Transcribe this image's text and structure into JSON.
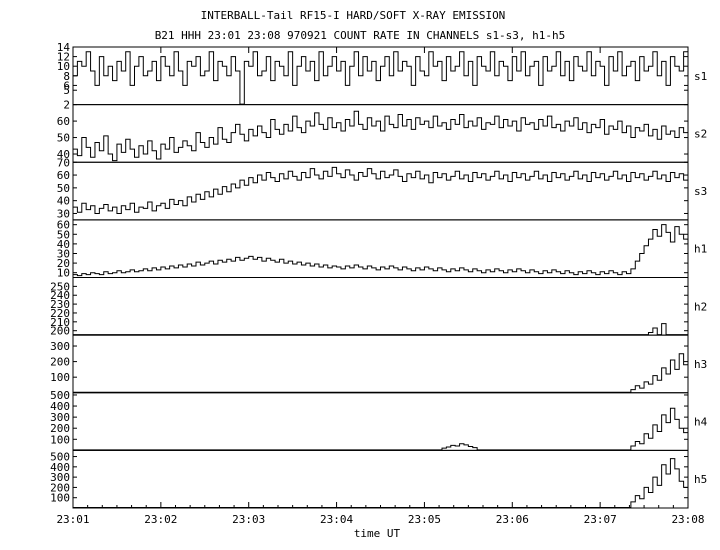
{
  "title": "INTERBALL-Tail RF15-I HARD/SOFT X-RAY EMISSION",
  "subtitle": "B21 HHH 23:01 23:08 970921  COUNT RATE IN CHANNELS s1-s3, h1-h5",
  "chart_data": {
    "type": "line",
    "xlabel": "time UT",
    "x_range": [
      "23:01",
      "23:08"
    ],
    "x_ticks": [
      "23:01",
      "23:02",
      "23:03",
      "23:04",
      "23:05",
      "23:06",
      "23:07",
      "23:08"
    ],
    "panels": [
      {
        "name": "s1",
        "ylim": [
          2,
          14
        ],
        "yticks": [
          2,
          5,
          6,
          8,
          10,
          12,
          14
        ],
        "values": [
          8,
          11,
          10,
          13,
          9,
          6,
          12,
          8,
          10,
          7,
          11,
          9,
          13,
          6,
          10,
          12,
          8,
          9,
          11,
          7,
          12,
          10,
          8,
          13,
          9,
          6,
          11,
          10,
          12,
          8,
          9,
          13,
          7,
          11,
          10,
          8,
          12,
          9,
          2,
          11,
          10,
          13,
          8,
          9,
          12,
          7,
          11,
          10,
          8,
          13,
          6,
          10,
          12,
          9,
          11,
          7,
          13,
          8,
          10,
          12,
          9,
          11,
          6,
          10,
          13,
          8,
          12,
          9,
          11,
          7,
          10,
          12,
          8,
          13,
          9,
          11,
          10,
          6,
          12,
          9,
          8,
          13,
          10,
          11,
          7,
          12,
          9,
          10,
          13,
          8,
          11,
          6,
          12,
          10,
          9,
          13,
          8,
          11,
          10,
          7,
          12,
          9,
          13,
          8,
          10,
          11,
          6,
          12,
          9,
          10,
          13,
          8,
          11,
          7,
          12,
          10,
          9,
          13,
          8,
          11,
          10,
          6,
          12,
          9,
          13,
          8,
          10,
          11,
          7,
          12,
          9,
          10,
          13,
          8,
          11,
          6,
          12,
          10,
          9,
          13
        ]
      },
      {
        "name": "s2",
        "ylim": [
          35,
          70
        ],
        "yticks": [
          40,
          50,
          60
        ],
        "values": [
          43,
          39,
          50,
          44,
          38,
          47,
          42,
          51,
          40,
          36,
          46,
          41,
          49,
          43,
          38,
          45,
          40,
          48,
          42,
          37,
          46,
          43,
          50,
          41,
          44,
          48,
          45,
          42,
          53,
          47,
          44,
          50,
          46,
          56,
          49,
          47,
          53,
          58,
          52,
          48,
          55,
          51,
          57,
          53,
          50,
          61,
          55,
          52,
          58,
          54,
          63,
          56,
          53,
          60,
          57,
          65,
          58,
          55,
          62,
          56,
          59,
          54,
          61,
          57,
          66,
          58,
          55,
          62,
          57,
          60,
          54,
          63,
          58,
          56,
          64,
          57,
          61,
          55,
          62,
          58,
          60,
          56,
          63,
          57,
          59,
          55,
          61,
          58,
          64,
          56,
          60,
          57,
          62,
          55,
          59,
          58,
          63,
          56,
          61,
          57,
          60,
          54,
          62,
          58,
          59,
          55,
          61,
          57,
          63,
          56,
          58,
          54,
          60,
          57,
          62,
          55,
          59,
          53,
          58,
          56,
          61,
          52,
          57,
          55,
          60,
          53,
          57,
          50,
          56,
          54,
          58,
          51,
          55,
          49,
          57,
          52,
          54,
          50,
          56,
          53
        ]
      },
      {
        "name": "s3",
        "ylim": [
          25,
          70
        ],
        "yticks": [
          30,
          40,
          50,
          60,
          70
        ],
        "values": [
          35,
          31,
          38,
          33,
          36,
          30,
          34,
          37,
          32,
          35,
          30,
          36,
          33,
          38,
          31,
          35,
          34,
          39,
          32,
          36,
          38,
          34,
          41,
          37,
          40,
          36,
          43,
          39,
          45,
          41,
          47,
          43,
          49,
          45,
          51,
          47,
          53,
          50,
          56,
          52,
          58,
          54,
          60,
          56,
          62,
          58,
          55,
          61,
          57,
          63,
          59,
          56,
          62,
          58,
          65,
          60,
          57,
          63,
          59,
          66,
          61,
          58,
          64,
          60,
          56,
          62,
          59,
          65,
          61,
          57,
          63,
          58,
          60,
          64,
          59,
          55,
          61,
          58,
          63,
          57,
          60,
          54,
          62,
          58,
          61,
          56,
          59,
          63,
          57,
          60,
          55,
          62,
          58,
          61,
          56,
          59,
          63,
          57,
          60,
          55,
          62,
          58,
          61,
          56,
          59,
          63,
          57,
          60,
          55,
          62,
          58,
          61,
          56,
          59,
          63,
          57,
          60,
          55,
          62,
          58,
          61,
          56,
          59,
          63,
          57,
          60,
          55,
          62,
          58,
          61,
          56,
          59,
          63,
          57,
          60,
          55,
          62,
          58,
          61,
          56
        ]
      },
      {
        "name": "h1",
        "ylim": [
          5,
          65
        ],
        "yticks": [
          10,
          20,
          30,
          40,
          50,
          60
        ],
        "values": [
          8,
          7,
          9,
          8,
          10,
          9,
          8,
          11,
          9,
          10,
          12,
          10,
          11,
          13,
          11,
          12,
          14,
          12,
          15,
          13,
          16,
          14,
          17,
          15,
          18,
          16,
          19,
          17,
          21,
          18,
          20,
          22,
          19,
          23,
          21,
          24,
          22,
          26,
          23,
          25,
          27,
          24,
          26,
          22,
          25,
          23,
          21,
          24,
          20,
          22,
          19,
          21,
          18,
          20,
          17,
          19,
          16,
          18,
          15,
          17,
          16,
          14,
          17,
          15,
          18,
          16,
          14,
          17,
          15,
          13,
          16,
          14,
          17,
          15,
          13,
          16,
          14,
          12,
          15,
          13,
          16,
          14,
          12,
          15,
          13,
          11,
          14,
          12,
          15,
          13,
          11,
          14,
          12,
          10,
          13,
          11,
          14,
          12,
          10,
          13,
          11,
          14,
          12,
          10,
          13,
          11,
          9,
          12,
          10,
          13,
          11,
          9,
          12,
          10,
          8,
          11,
          9,
          12,
          10,
          8,
          11,
          9,
          12,
          10,
          8,
          11,
          9,
          14,
          22,
          30,
          38,
          45,
          55,
          48,
          60,
          52,
          42,
          58,
          50,
          45
        ]
      },
      {
        "name": "h2",
        "ylim": [
          195,
          260
        ],
        "yticks": [
          200,
          210,
          220,
          230,
          240,
          250
        ],
        "values": [
          195,
          195,
          195,
          195,
          195,
          195,
          195,
          195,
          195,
          195,
          195,
          195,
          195,
          195,
          195,
          195,
          195,
          195,
          195,
          195,
          195,
          195,
          195,
          195,
          195,
          195,
          195,
          195,
          195,
          195,
          195,
          195,
          195,
          195,
          195,
          195,
          195,
          195,
          195,
          195,
          195,
          195,
          195,
          195,
          195,
          195,
          195,
          195,
          195,
          195,
          195,
          195,
          195,
          195,
          195,
          195,
          195,
          195,
          195,
          195,
          195,
          195,
          195,
          195,
          195,
          195,
          195,
          195,
          195,
          195,
          195,
          195,
          195,
          195,
          195,
          195,
          195,
          195,
          195,
          195,
          195,
          195,
          195,
          195,
          195,
          195,
          195,
          195,
          195,
          195,
          195,
          195,
          195,
          195,
          195,
          195,
          195,
          195,
          195,
          195,
          195,
          195,
          195,
          195,
          195,
          195,
          195,
          195,
          195,
          195,
          195,
          195,
          195,
          195,
          195,
          195,
          195,
          195,
          195,
          195,
          195,
          195,
          195,
          195,
          195,
          195,
          195,
          195,
          195,
          195,
          195,
          198,
          203,
          195,
          208,
          195,
          195,
          195,
          195,
          195
        ]
      },
      {
        "name": "h3",
        "ylim": [
          0,
          370
        ],
        "yticks": [
          100,
          200,
          300
        ],
        "values": [
          0,
          0,
          0,
          0,
          0,
          0,
          0,
          0,
          0,
          0,
          0,
          0,
          0,
          0,
          0,
          0,
          0,
          0,
          0,
          0,
          0,
          0,
          0,
          0,
          0,
          0,
          0,
          0,
          0,
          0,
          0,
          0,
          0,
          0,
          0,
          0,
          0,
          0,
          0,
          0,
          0,
          0,
          0,
          0,
          0,
          0,
          0,
          0,
          0,
          0,
          0,
          0,
          0,
          0,
          0,
          0,
          0,
          0,
          0,
          0,
          0,
          0,
          0,
          0,
          0,
          0,
          0,
          0,
          0,
          0,
          0,
          0,
          0,
          0,
          0,
          0,
          0,
          0,
          0,
          0,
          0,
          0,
          0,
          0,
          0,
          0,
          0,
          0,
          0,
          0,
          0,
          0,
          0,
          0,
          0,
          0,
          0,
          0,
          0,
          0,
          0,
          0,
          0,
          0,
          0,
          0,
          0,
          0,
          0,
          0,
          0,
          0,
          0,
          0,
          0,
          0,
          0,
          0,
          0,
          0,
          0,
          0,
          0,
          0,
          0,
          0,
          0,
          20,
          45,
          30,
          70,
          55,
          110,
          80,
          160,
          120,
          210,
          150,
          250,
          180
        ]
      },
      {
        "name": "h4",
        "ylim": [
          0,
          520
        ],
        "yticks": [
          100,
          200,
          300,
          400,
          500
        ],
        "values": [
          0,
          0,
          0,
          0,
          0,
          0,
          0,
          0,
          0,
          0,
          0,
          0,
          0,
          0,
          0,
          0,
          0,
          0,
          0,
          0,
          0,
          0,
          0,
          0,
          0,
          0,
          0,
          0,
          0,
          0,
          0,
          0,
          0,
          0,
          0,
          0,
          0,
          0,
          0,
          0,
          0,
          0,
          0,
          0,
          0,
          0,
          0,
          0,
          0,
          0,
          0,
          0,
          0,
          0,
          0,
          0,
          0,
          0,
          0,
          0,
          0,
          0,
          0,
          0,
          0,
          0,
          0,
          0,
          0,
          0,
          0,
          0,
          0,
          0,
          0,
          0,
          0,
          0,
          0,
          0,
          0,
          0,
          0,
          0,
          20,
          30,
          45,
          40,
          60,
          50,
          35,
          25,
          0,
          0,
          0,
          0,
          0,
          0,
          0,
          0,
          0,
          0,
          0,
          0,
          0,
          0,
          0,
          0,
          0,
          0,
          0,
          0,
          0,
          0,
          0,
          0,
          0,
          0,
          0,
          0,
          0,
          0,
          0,
          0,
          0,
          0,
          0,
          40,
          80,
          60,
          150,
          110,
          230,
          170,
          320,
          250,
          380,
          280,
          200,
          160
        ]
      },
      {
        "name": "h5",
        "ylim": [
          0,
          560
        ],
        "yticks": [
          100,
          200,
          300,
          400,
          500
        ],
        "values": [
          0,
          0,
          0,
          0,
          0,
          0,
          0,
          0,
          0,
          0,
          0,
          0,
          0,
          0,
          0,
          0,
          0,
          0,
          0,
          0,
          0,
          0,
          0,
          0,
          0,
          0,
          0,
          0,
          0,
          0,
          0,
          0,
          0,
          0,
          0,
          0,
          0,
          0,
          0,
          0,
          0,
          0,
          0,
          0,
          0,
          0,
          0,
          0,
          0,
          0,
          0,
          0,
          0,
          0,
          0,
          0,
          0,
          0,
          0,
          0,
          0,
          0,
          0,
          0,
          0,
          0,
          0,
          0,
          0,
          0,
          0,
          0,
          0,
          0,
          0,
          0,
          0,
          0,
          0,
          0,
          0,
          0,
          0,
          0,
          0,
          0,
          0,
          0,
          0,
          0,
          0,
          0,
          0,
          0,
          0,
          0,
          0,
          0,
          0,
          0,
          0,
          0,
          0,
          0,
          0,
          0,
          0,
          0,
          0,
          0,
          0,
          0,
          0,
          0,
          0,
          0,
          0,
          0,
          0,
          0,
          0,
          0,
          0,
          0,
          0,
          0,
          0,
          60,
          120,
          90,
          200,
          150,
          300,
          220,
          420,
          330,
          480,
          380,
          260,
          200
        ]
      }
    ]
  }
}
